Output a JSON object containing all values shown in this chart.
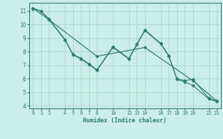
{
  "xlabel": "Humidex (Indice chaleur)",
  "background_color": "#cceee8",
  "grid_color": "#aad8d0",
  "line_color": "#2e7d6e",
  "xlim": [
    -0.5,
    23.5
  ],
  "ylim": [
    3.8,
    11.6
  ],
  "xticks": [
    0,
    1,
    2,
    4,
    5,
    6,
    7,
    8,
    10,
    12,
    13,
    14,
    16,
    17,
    18,
    19,
    20,
    22,
    23
  ],
  "yticks": [
    4,
    5,
    6,
    7,
    8,
    9,
    10,
    11
  ],
  "line1_x": [
    0,
    1,
    2,
    4,
    5,
    6,
    7,
    8,
    10,
    12,
    13,
    14,
    16,
    17,
    18,
    19,
    20,
    22,
    23
  ],
  "line1_y": [
    11.2,
    11.0,
    10.4,
    8.9,
    7.8,
    7.5,
    7.1,
    6.65,
    8.35,
    7.5,
    8.55,
    9.6,
    8.6,
    7.7,
    6.0,
    5.85,
    5.95,
    4.55,
    4.35
  ],
  "line2_x": [
    0,
    1,
    2,
    4,
    5,
    6,
    7,
    8,
    10,
    12,
    13,
    14,
    16,
    17,
    18,
    19,
    20,
    22,
    23
  ],
  "line2_y": [
    11.15,
    11.0,
    10.35,
    8.85,
    7.75,
    7.45,
    7.05,
    6.6,
    8.3,
    7.45,
    8.5,
    9.55,
    8.55,
    7.65,
    5.95,
    5.75,
    5.5,
    4.5,
    4.3
  ],
  "line3_x": [
    0,
    2,
    8,
    14,
    20,
    23
  ],
  "line3_y": [
    11.2,
    10.35,
    7.65,
    8.3,
    5.85,
    4.35
  ]
}
